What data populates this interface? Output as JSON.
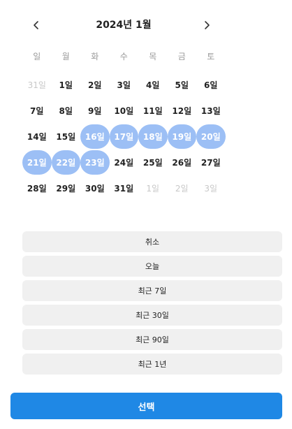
{
  "header": {
    "title": "2024년 1월",
    "prev_icon": "chevron-left-icon",
    "next_icon": "chevron-right-icon"
  },
  "weekdays": [
    "일",
    "월",
    "화",
    "수",
    "목",
    "금",
    "토"
  ],
  "weeks": [
    [
      {
        "label": "31일",
        "state": "muted"
      },
      {
        "label": "1일",
        "state": "normal"
      },
      {
        "label": "2일",
        "state": "normal"
      },
      {
        "label": "3일",
        "state": "normal"
      },
      {
        "label": "4일",
        "state": "normal"
      },
      {
        "label": "5일",
        "state": "normal"
      },
      {
        "label": "6일",
        "state": "normal"
      }
    ],
    [
      {
        "label": "7일",
        "state": "normal"
      },
      {
        "label": "8일",
        "state": "normal"
      },
      {
        "label": "9일",
        "state": "normal"
      },
      {
        "label": "10일",
        "state": "normal"
      },
      {
        "label": "11일",
        "state": "normal"
      },
      {
        "label": "12일",
        "state": "normal"
      },
      {
        "label": "13일",
        "state": "normal"
      }
    ],
    [
      {
        "label": "14일",
        "state": "normal"
      },
      {
        "label": "15일",
        "state": "normal"
      },
      {
        "label": "16일",
        "state": "selected"
      },
      {
        "label": "17일",
        "state": "selected"
      },
      {
        "label": "18일",
        "state": "selected"
      },
      {
        "label": "19일",
        "state": "selected"
      },
      {
        "label": "20일",
        "state": "selected"
      }
    ],
    [
      {
        "label": "21일",
        "state": "selected"
      },
      {
        "label": "22일",
        "state": "selected"
      },
      {
        "label": "23일",
        "state": "selected"
      },
      {
        "label": "24일",
        "state": "normal"
      },
      {
        "label": "25일",
        "state": "normal"
      },
      {
        "label": "26일",
        "state": "normal"
      },
      {
        "label": "27일",
        "state": "normal"
      }
    ],
    [
      {
        "label": "28일",
        "state": "normal"
      },
      {
        "label": "29일",
        "state": "normal"
      },
      {
        "label": "30일",
        "state": "normal"
      },
      {
        "label": "31일",
        "state": "normal"
      },
      {
        "label": "1일",
        "state": "muted"
      },
      {
        "label": "2일",
        "state": "muted"
      },
      {
        "label": "3일",
        "state": "muted"
      }
    ]
  ],
  "presets": [
    {
      "label": "취소",
      "name": "cancel-button"
    },
    {
      "label": "오늘",
      "name": "today-button"
    },
    {
      "label": "최근 7일",
      "name": "last-7-days-button"
    },
    {
      "label": "최근 30일",
      "name": "last-30-days-button"
    },
    {
      "label": "최근 90일",
      "name": "last-90-days-button"
    },
    {
      "label": "최근 1년",
      "name": "last-1-year-button"
    }
  ],
  "confirm_label": "선택",
  "colors": {
    "selected": "#9cbff5",
    "primary": "#1f88e5",
    "preset_bg": "#f0f0f0",
    "muted": "#c8c8c8"
  }
}
